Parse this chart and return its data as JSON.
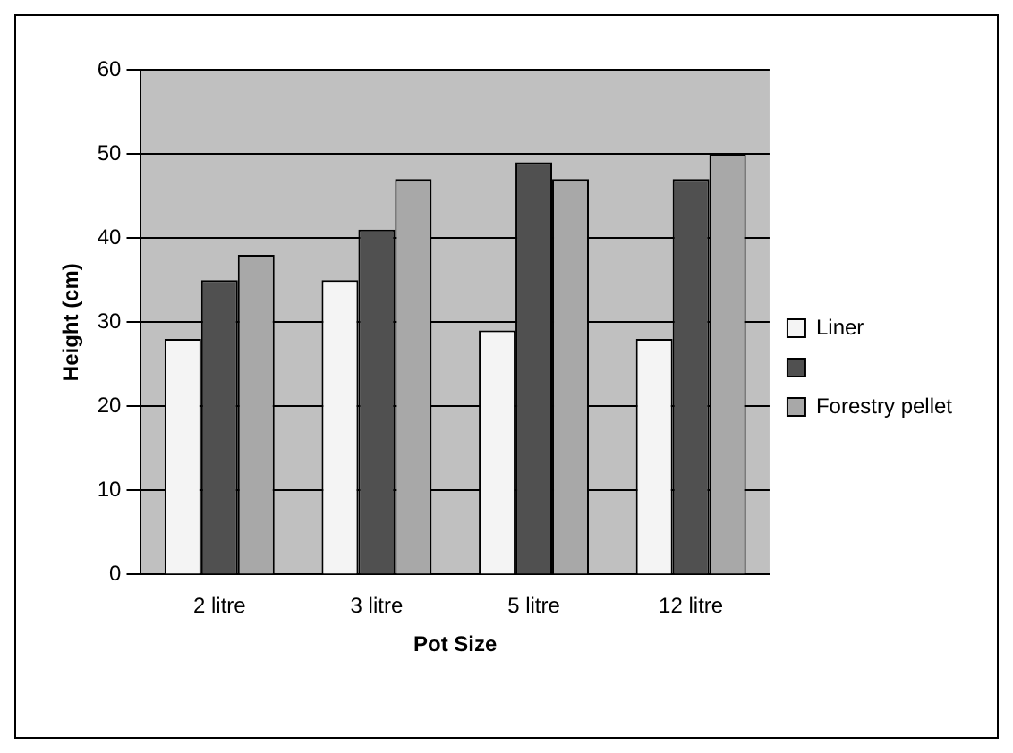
{
  "chart_data": {
    "type": "bar",
    "xlabel": "Pot Size",
    "ylabel": "Height (cm)",
    "categories": [
      "2 litre",
      "3 litre",
      "5 litre",
      "12 litre"
    ],
    "series": [
      {
        "name": "Liner",
        "color": "#f4f4f4",
        "values": [
          28,
          35,
          29,
          28
        ]
      },
      {
        "color": "#505050",
        "values": [
          35,
          41,
          49,
          47
        ]
      },
      {
        "name": "Forestry pellet",
        "color": "#a8a8a8",
        "values": [
          38,
          47,
          47,
          50
        ]
      }
    ],
    "ylim": [
      0,
      60
    ],
    "yticks": [
      0,
      10,
      20,
      30,
      40,
      50,
      60
    ],
    "grid": "y",
    "legend": "right"
  }
}
